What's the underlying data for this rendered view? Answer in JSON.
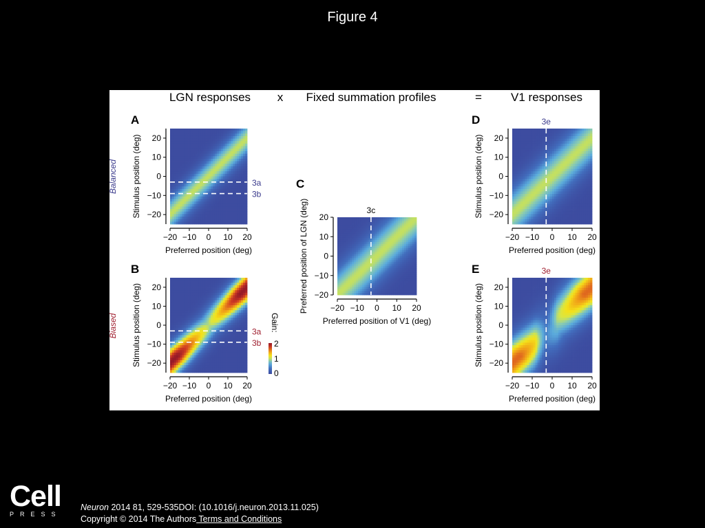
{
  "slide": {
    "title": "Figure 4"
  },
  "figure": {
    "header": {
      "lgn": "LGN responses",
      "times": "x",
      "fixed": "Fixed summation profiles",
      "equals": "=",
      "v1": "V1 responses"
    },
    "colorbar": {
      "label": "Gain:",
      "ticks": [
        "0",
        "1",
        "2"
      ],
      "range": [
        0,
        2
      ]
    }
  },
  "chart_data": [
    {
      "id": "A",
      "type": "heatmap",
      "panel_label": "A",
      "row_label": "Balanced",
      "xlabel": "Preferred position (deg)",
      "ylabel": "Stimulus position (deg)",
      "xticks": [
        "−20",
        "−10",
        "0",
        "10",
        "20"
      ],
      "yticks": [
        "20",
        "10",
        "0",
        "−10",
        "−20"
      ],
      "xlim": [
        -20,
        20
      ],
      "ylim": [
        -25,
        25
      ],
      "value_range": [
        0,
        2
      ],
      "description_values": {
        "peak_gain_along_diagonal": 1.0,
        "bias": "none"
      },
      "markers": [
        {
          "orientation": "horizontal",
          "value": -3,
          "label": "3a",
          "color": "#3a3a8c"
        },
        {
          "orientation": "horizontal",
          "value": -9,
          "label": "3b",
          "color": "#3a3a8c"
        }
      ]
    },
    {
      "id": "B",
      "type": "heatmap",
      "panel_label": "B",
      "row_label": "Biased",
      "xlabel": "Preferred position (deg)",
      "ylabel": "Stimulus position (deg)",
      "xticks": [
        "−20",
        "−10",
        "0",
        "10",
        "20"
      ],
      "yticks": [
        "20",
        "10",
        "0",
        "−10",
        "−20"
      ],
      "xlim": [
        -20,
        20
      ],
      "ylim": [
        -25,
        25
      ],
      "value_range": [
        0,
        2
      ],
      "description_values": {
        "peak_gain_along_diagonal": 2.0,
        "bias": "gain high away from center"
      },
      "markers": [
        {
          "orientation": "horizontal",
          "value": -3,
          "label": "3a",
          "color": "#a02030"
        },
        {
          "orientation": "horizontal",
          "value": -9,
          "label": "3b",
          "color": "#a02030"
        }
      ]
    },
    {
      "id": "C",
      "type": "heatmap",
      "panel_label": "C",
      "xlabel": "Preferred position of V1 (deg)",
      "ylabel": "Preferred position of LGN (deg)",
      "xticks": [
        "−20",
        "−10",
        "0",
        "10",
        "20"
      ],
      "yticks": [
        "20",
        "10",
        "0",
        "−10",
        "−20"
      ],
      "xlim": [
        -20,
        20
      ],
      "ylim": [
        -20,
        20
      ],
      "value_range": [
        0,
        2
      ],
      "description_values": {
        "peak_gain_along_diagonal": 1.0
      },
      "markers": [
        {
          "orientation": "vertical",
          "value": -3,
          "label": "3c",
          "color": "#000000"
        }
      ]
    },
    {
      "id": "D",
      "type": "heatmap",
      "panel_label": "D",
      "xlabel": "Preferred position (deg)",
      "ylabel": "Stimulus position (deg)",
      "xticks": [
        "−20",
        "−10",
        "0",
        "10",
        "20"
      ],
      "yticks": [
        "20",
        "10",
        "0",
        "−10",
        "−20"
      ],
      "xlim": [
        -20,
        20
      ],
      "ylim": [
        -25,
        25
      ],
      "value_range": [
        0,
        2
      ],
      "description_values": {
        "peak_gain_along_diagonal": 1.0,
        "bias": "none"
      },
      "markers": [
        {
          "orientation": "vertical",
          "value": -3,
          "label": "3e",
          "color": "#3a3a8c"
        }
      ]
    },
    {
      "id": "E",
      "type": "heatmap",
      "panel_label": "E",
      "xlabel": "Preferred position (deg)",
      "ylabel": "Stimulus position (deg)",
      "xticks": [
        "−20",
        "−10",
        "0",
        "10",
        "20"
      ],
      "yticks": [
        "20",
        "10",
        "0",
        "−10",
        "−20"
      ],
      "xlim": [
        -20,
        20
      ],
      "ylim": [
        -25,
        25
      ],
      "value_range": [
        0,
        2
      ],
      "description_values": {
        "peak_gain_along_diagonal": 1.6,
        "bias": "gain high away from center"
      },
      "markers": [
        {
          "orientation": "vertical",
          "value": -3,
          "label": "3e",
          "color": "#a02030"
        }
      ]
    }
  ],
  "footer": {
    "journal": "Neuron",
    "citation": " 2014 81, 529-535DOI: (10.1016/j.neuron.2013.11.025)",
    "copyright": "Copyright © 2014 The Authors",
    "terms_link": " Terms and Conditions"
  },
  "logo": {
    "name": "Cell",
    "subtitle": "PRESS"
  }
}
